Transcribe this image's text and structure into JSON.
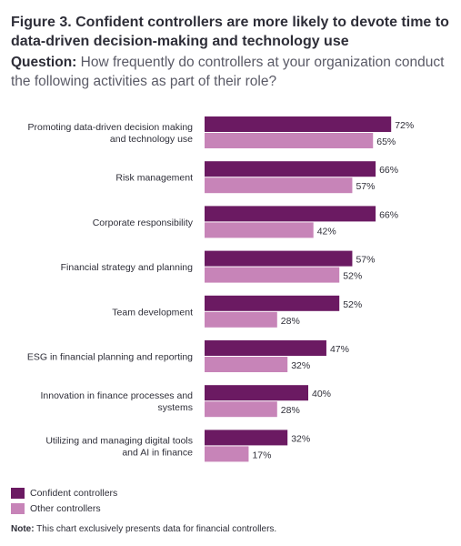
{
  "header": {
    "title": "Figure 3. Confident controllers are more likely to devote time to data-driven decision-making and technology use",
    "question_label": "Question:",
    "question_text": "How frequently do controllers at your organization conduct the following activities as part of their role?"
  },
  "colors": {
    "confident": "#6b1a62",
    "other": "#c784b8"
  },
  "chart_data": {
    "type": "bar",
    "orientation": "horizontal",
    "categories": [
      "Promoting data-driven decision making and technology use",
      "Risk management",
      "Corporate responsibility",
      "Financial strategy and planning",
      "Team development",
      "ESG in financial planning and reporting",
      "Innovation in finance processes and systems",
      "Utilizing and managing digital tools and AI in finance"
    ],
    "category_lines": [
      [
        "Promoting data-driven decision making",
        "and technology use"
      ],
      [
        "Risk management"
      ],
      [
        "Corporate responsibility"
      ],
      [
        "Financial strategy and planning"
      ],
      [
        "Team development"
      ],
      [
        "ESG in financial planning and reporting"
      ],
      [
        "Innovation in finance processes and",
        "systems"
      ],
      [
        "Utilizing and managing digital tools",
        "and AI in finance"
      ]
    ],
    "series": [
      {
        "name": "Confident controllers",
        "values": [
          72,
          66,
          66,
          57,
          52,
          47,
          40,
          32
        ]
      },
      {
        "name": "Other controllers",
        "values": [
          65,
          57,
          42,
          52,
          28,
          32,
          28,
          17
        ]
      }
    ],
    "value_suffix": "%",
    "xlim": [
      0,
      100
    ],
    "grid": false,
    "legend_position": "bottom-left"
  },
  "legend": [
    {
      "label": "Confident controllers"
    },
    {
      "label": "Other controllers"
    }
  ],
  "note": {
    "label": "Note:",
    "text": "This chart exclusively presents data for financial controllers."
  }
}
